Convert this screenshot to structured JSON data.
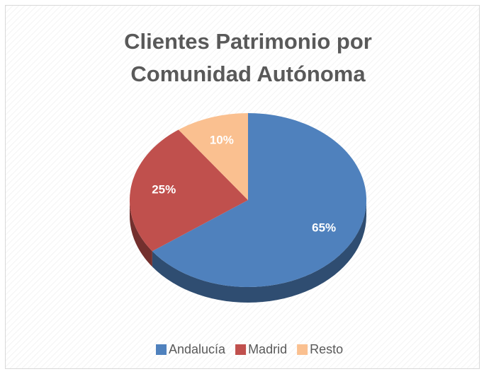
{
  "chart_data": {
    "type": "pie",
    "title": "Clientes Patrimonio por Comunidad Autónoma",
    "categories": [
      "Andalucía",
      "Madrid",
      "Resto"
    ],
    "values": [
      65,
      25,
      10
    ],
    "value_labels": [
      "65%",
      "25%",
      "10%"
    ],
    "colors": [
      "#4f81bd",
      "#c0504d",
      "#fac090"
    ],
    "legend": "bottom"
  }
}
